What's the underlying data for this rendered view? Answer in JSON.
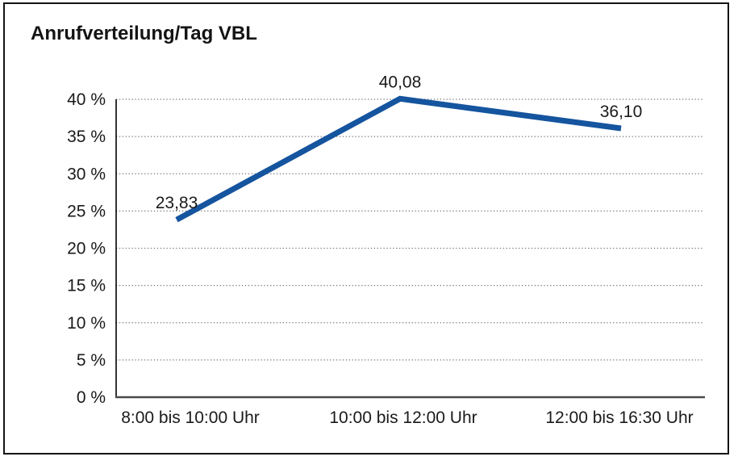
{
  "chart": {
    "title": "Anrufverteilung/Tag VBL"
  },
  "chart_data": {
    "type": "line",
    "title": "Anrufverteilung/Tag VBL",
    "categories": [
      "8:00 bis 10:00 Uhr",
      "10:00 bis 12:00 Uhr",
      "12:00 bis 16:30 Uhr"
    ],
    "series": [
      {
        "name": "Anrufverteilung",
        "values": [
          23.83,
          40.08,
          36.1
        ],
        "value_labels": [
          "23,83",
          "40,08",
          "36,10"
        ]
      }
    ],
    "xlabel": "",
    "ylabel": "",
    "ylim": [
      0,
      40
    ],
    "ytick_step": 5,
    "ytick_labels": [
      "0 %",
      "5 %",
      "10 %",
      "15 %",
      "20 %",
      "25 %",
      "30 %",
      "35 %",
      "40 %"
    ],
    "grid": "horizontal-dotted",
    "legend_position": "none"
  },
  "colors": {
    "line": "#15549E",
    "grid": "#777777",
    "y_axis": "#000000",
    "x_axis": "#4a4a4a",
    "text": "#1a1a1a",
    "frame": "#141414"
  }
}
